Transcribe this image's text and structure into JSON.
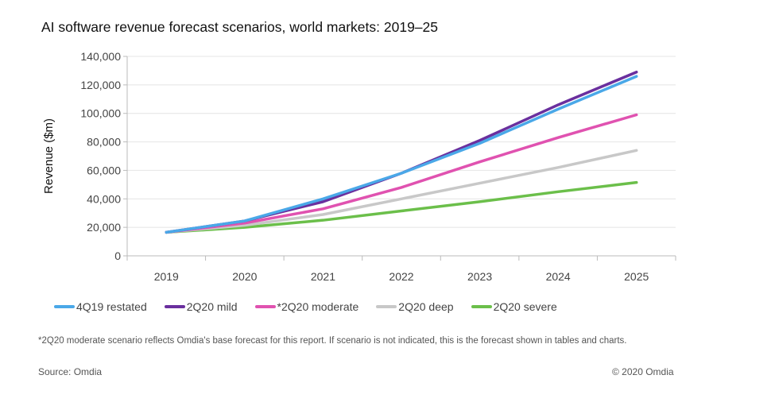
{
  "chart_data": {
    "type": "line",
    "title": "AI software revenue forecast scenarios, world markets: 2019–25",
    "ylabel": "Revenue ($m)",
    "xlabel": "",
    "ylim": [
      0,
      140000
    ],
    "yticks": [
      "0",
      "20,000",
      "40,000",
      "60,000",
      "80,000",
      "100,000",
      "120,000",
      "140,000"
    ],
    "categories": [
      "2019",
      "2020",
      "2021",
      "2022",
      "2023",
      "2024",
      "2025"
    ],
    "grid": true,
    "legend": "bottom",
    "series": [
      {
        "name": "4Q19 restated",
        "color": "#4aa8e8",
        "values": [
          16500,
          24500,
          40000,
          58000,
          79000,
          103000,
          126000
        ]
      },
      {
        "name": "2Q20 mild",
        "color": "#6a2f9e",
        "values": [
          16500,
          24500,
          38000,
          58000,
          81000,
          106000,
          129000
        ]
      },
      {
        "name": "*2Q20 moderate",
        "color": "#e052b0",
        "values": [
          16500,
          23000,
          33000,
          48000,
          66000,
          83000,
          99000
        ]
      },
      {
        "name": "2Q20 deep",
        "color": "#c8c8c8",
        "values": [
          16500,
          21500,
          29000,
          40000,
          51000,
          62000,
          74000
        ]
      },
      {
        "name": "2Q20 severe",
        "color": "#6bbf4a",
        "values": [
          16500,
          20000,
          25000,
          31500,
          38000,
          45000,
          51500
        ]
      }
    ]
  },
  "footnote": "*2Q20 moderate scenario reflects Omdia's base forecast for this report. If scenario is not indicated, this is the forecast shown in tables and charts.",
  "source": "Source: Omdia",
  "copyright": "© 2020 Omdia"
}
